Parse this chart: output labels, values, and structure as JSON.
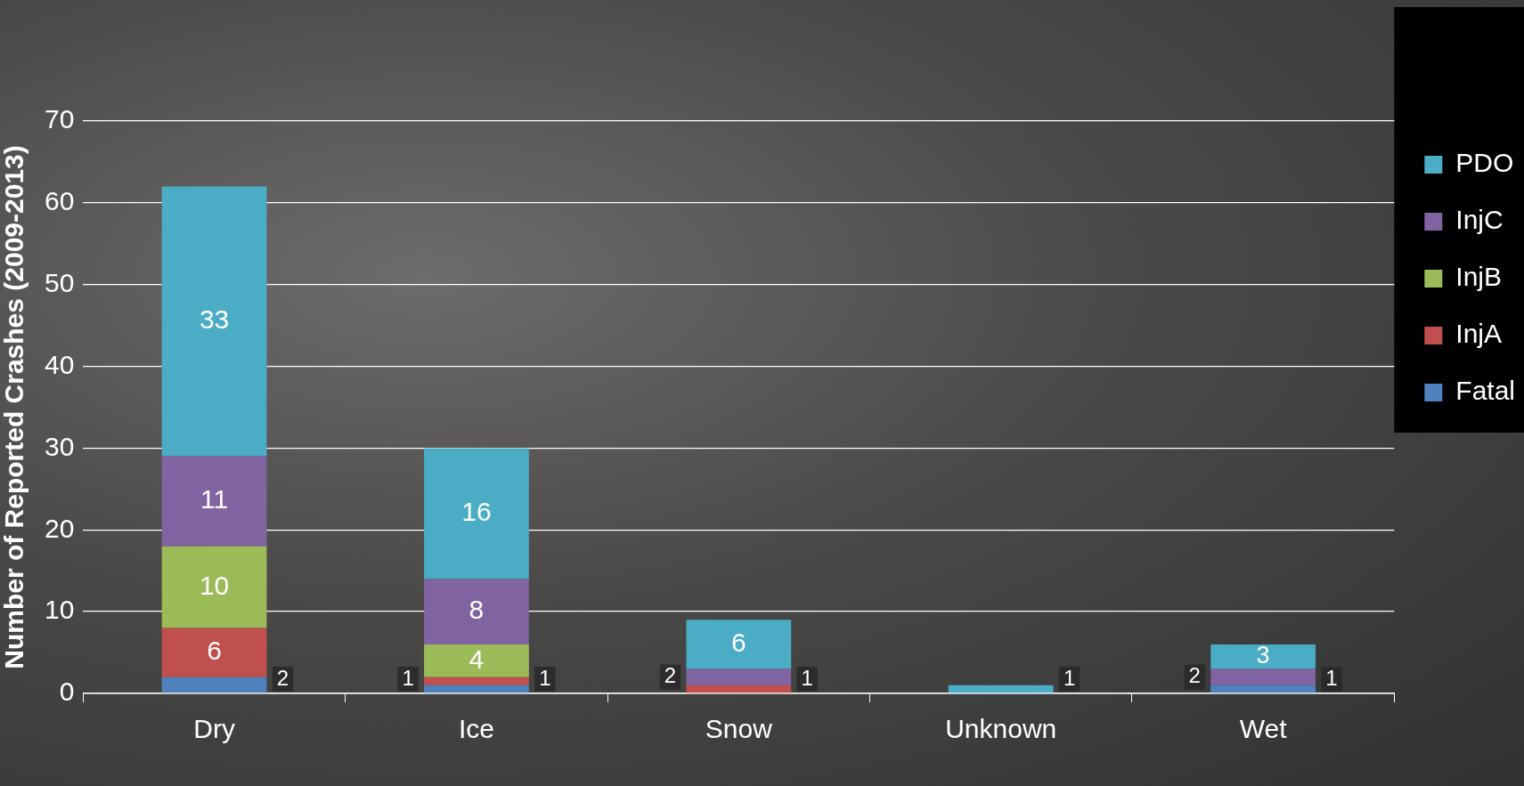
{
  "chart_data": {
    "type": "bar",
    "stacked": true,
    "ylabel": "Number of Reported Crashes (2009-2013)",
    "categories": [
      "Dry",
      "Ice",
      "Snow",
      "Unknown",
      "Wet"
    ],
    "series": [
      {
        "name": "Fatal",
        "color": "#4f81bd",
        "values": [
          2,
          1,
          0,
          0,
          1
        ],
        "value_labels": [
          "2",
          "1",
          null,
          null,
          "1"
        ]
      },
      {
        "name": "InjA",
        "color": "#c0504d",
        "values": [
          6,
          1,
          1,
          0,
          0
        ],
        "value_labels": [
          "6",
          "1",
          "1",
          null,
          null
        ]
      },
      {
        "name": "InjB",
        "color": "#9bbb59",
        "values": [
          10,
          4,
          0,
          0,
          0
        ],
        "value_labels": [
          "10",
          "4",
          null,
          null,
          null
        ]
      },
      {
        "name": "InjC",
        "color": "#8064a2",
        "values": [
          11,
          8,
          2,
          0,
          2
        ],
        "value_labels": [
          "11",
          "8",
          "2",
          null,
          "2"
        ]
      },
      {
        "name": "PDO",
        "color": "#4bacc6",
        "values": [
          33,
          16,
          6,
          1,
          3
        ],
        "value_labels": [
          "33",
          "16",
          "6",
          "1",
          "3"
        ]
      }
    ],
    "ylim": [
      0,
      70
    ],
    "yticks": [
      0,
      10,
      20,
      30,
      40,
      50,
      60,
      70
    ],
    "grid": "y",
    "legend": "top right"
  }
}
